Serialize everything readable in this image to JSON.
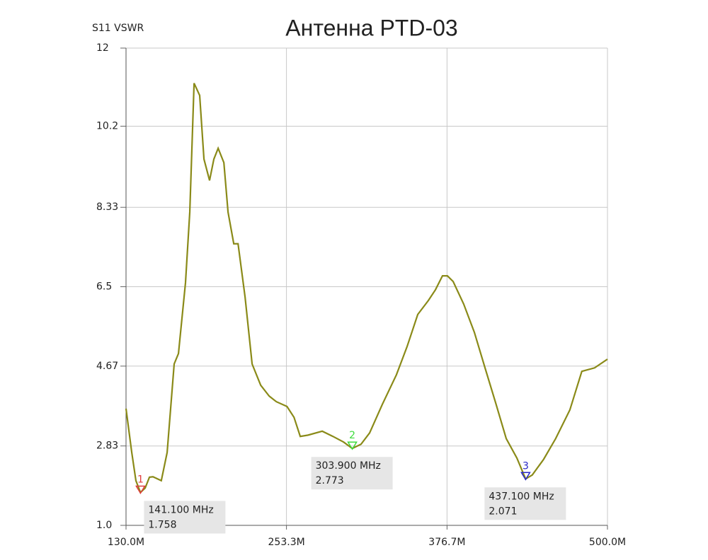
{
  "chart_data": {
    "type": "line",
    "title": "Антенна PTD-03",
    "y_label": "S11 VSWR",
    "x": [
      130,
      134.4,
      137.6,
      141.1,
      144.7,
      148,
      150.7,
      157.1,
      161.6,
      167,
      170.3,
      175.7,
      179,
      182.3,
      186.6,
      189.9,
      194.2,
      197.5,
      200.8,
      205.2,
      208.4,
      212.8,
      216.1,
      221.5,
      226.9,
      233.5,
      240,
      245.5,
      253.7,
      259.1,
      263.9,
      269.9,
      280.8,
      289,
      297.2,
      303.9,
      310.6,
      317.2,
      327,
      337.8,
      346,
      354.2,
      362.3,
      367.8,
      373.2,
      377,
      381.4,
      389.5,
      397.7,
      405.9,
      414.1,
      422.2,
      430.4,
      437.1,
      442.2,
      450.9,
      460.2,
      471.1,
      480.3,
      490.1,
      500
    ],
    "series": [
      {
        "color": "#8a8a18",
        "values": [
          3.69,
          2.68,
          2.03,
          1.758,
          1.86,
          2.11,
          2.12,
          2.03,
          2.68,
          4.72,
          4.96,
          6.59,
          8.22,
          11.19,
          10.91,
          9.44,
          8.95,
          9.44,
          9.69,
          9.36,
          8.22,
          7.49,
          7.49,
          6.26,
          4.72,
          4.23,
          3.98,
          3.85,
          3.74,
          3.49,
          3.05,
          3.08,
          3.17,
          3.05,
          2.92,
          2.773,
          2.87,
          3.13,
          3.79,
          4.47,
          5.12,
          5.86,
          6.18,
          6.43,
          6.75,
          6.75,
          6.62,
          6.1,
          5.45,
          4.63,
          3.82,
          3.0,
          2.55,
          2.071,
          2.16,
          2.52,
          3.0,
          3.66,
          4.55,
          4.63,
          4.83
        ]
      }
    ],
    "xlim": [
      130,
      500
    ],
    "xticks": [
      {
        "value": 130,
        "label": "130.0M"
      },
      {
        "value": 253.3,
        "label": "253.3M"
      },
      {
        "value": 376.7,
        "label": "376.7M"
      },
      {
        "value": 500,
        "label": "500.0M"
      }
    ],
    "ylim": [
      1,
      12
    ],
    "yticks": [
      {
        "value": 1,
        "label": "1.0"
      },
      2.83,
      4.67,
      6.5,
      8.33,
      10.2,
      12
    ],
    "grid": true,
    "markers": [
      {
        "name": "1",
        "x": {
          "value": 141.1,
          "label": "141.100 MHz"
        },
        "y": 1.758,
        "color": "#e03c3c"
      },
      {
        "name": "2",
        "x": {
          "value": 303.9,
          "label": "303.900 MHz"
        },
        "y": 2.773,
        "color": "#3cdc3c"
      },
      {
        "name": "3",
        "x": {
          "value": 437.1,
          "label": "437.100 MHz"
        },
        "y": 2.071,
        "color": "#2828c8"
      }
    ]
  }
}
